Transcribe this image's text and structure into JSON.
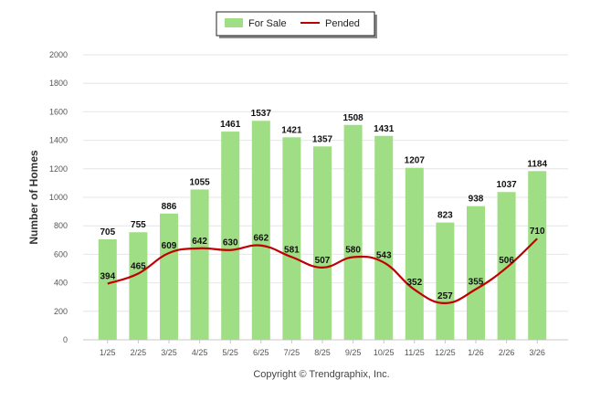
{
  "chart_data": {
    "type": "bar",
    "categories": [
      "1/25",
      "2/25",
      "3/25",
      "4/25",
      "5/25",
      "6/25",
      "7/25",
      "8/25",
      "9/25",
      "10/25",
      "11/25",
      "12/25",
      "1/26",
      "2/26",
      "3/26"
    ],
    "series": [
      {
        "name": "For Sale",
        "kind": "bar",
        "color": "#a0de85",
        "values": [
          705,
          755,
          886,
          1055,
          1461,
          1537,
          1421,
          1357,
          1508,
          1431,
          1207,
          823,
          938,
          1037,
          1184
        ]
      },
      {
        "name": "Pended",
        "kind": "line",
        "color": "#c00000",
        "values": [
          394,
          465,
          609,
          642,
          630,
          662,
          581,
          507,
          580,
          543,
          352,
          257,
          355,
          506,
          710
        ]
      }
    ],
    "title": "",
    "xlabel": "",
    "ylabel": "Number of Homes",
    "ylim": [
      0,
      2000
    ],
    "yticks": [
      0,
      200,
      400,
      600,
      800,
      1000,
      1200,
      1400,
      1600,
      1800,
      2000
    ],
    "grid": true,
    "legend_position": "top-center"
  },
  "legend": {
    "for_sale": "For Sale",
    "pended": "Pended"
  },
  "copyright": "Copyright © Trendgraphix, Inc."
}
